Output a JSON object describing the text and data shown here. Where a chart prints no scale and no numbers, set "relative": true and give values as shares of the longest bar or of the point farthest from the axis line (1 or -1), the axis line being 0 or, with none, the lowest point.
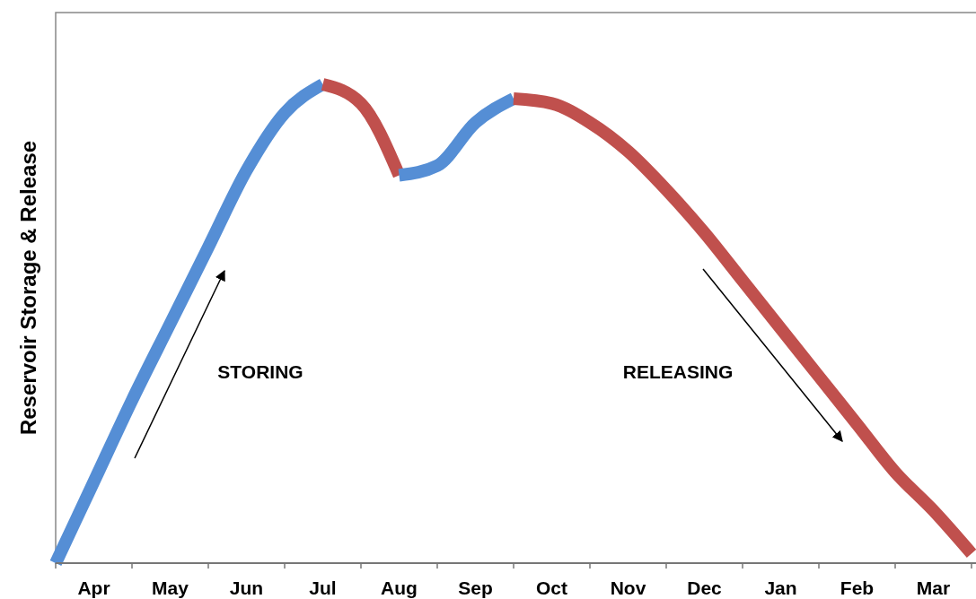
{
  "chart_data": {
    "type": "line",
    "ylabel": "Reservoir Storage & Release",
    "relative": true,
    "categories": [
      null,
      "Apr",
      null,
      "May",
      null,
      "Jun",
      null,
      "Jul",
      null,
      "Aug",
      null,
      "Sep",
      null,
      "Oct",
      null,
      "Nov",
      null,
      "Dec",
      null,
      "Jan",
      null,
      "Feb",
      null,
      "Mar",
      null
    ],
    "grid": false,
    "legend": false,
    "marker": "none",
    "line_style": "solid",
    "series": [
      {
        "color": "#558ed5",
        "values": [
          0,
          0.17,
          0.34,
          0.5,
          0.66,
          0.82,
          0.94,
          1,
          null,
          null,
          null,
          null,
          null,
          null,
          null,
          null,
          null,
          null,
          null,
          null,
          null,
          null,
          null,
          null,
          null
        ]
      },
      {
        "color": "#c0504d",
        "values": [
          null,
          null,
          null,
          null,
          null,
          null,
          null,
          1,
          0.96,
          0.81,
          null,
          null,
          null,
          null,
          null,
          null,
          null,
          null,
          null,
          null,
          null,
          null,
          null,
          null,
          null
        ]
      },
      {
        "color": "#558ed5",
        "values": [
          null,
          null,
          null,
          null,
          null,
          null,
          null,
          null,
          null,
          0.81,
          0.83,
          0.92,
          0.97,
          null,
          null,
          null,
          null,
          null,
          null,
          null,
          null,
          null,
          null,
          null,
          null
        ]
      },
      {
        "color": "#c0504d",
        "values": [
          null,
          null,
          null,
          null,
          null,
          null,
          null,
          null,
          null,
          null,
          null,
          null,
          0.97,
          0.96,
          0.92,
          0.86,
          0.78,
          0.69,
          0.59,
          0.49,
          0.39,
          0.29,
          0.19,
          0.11,
          0.02
        ]
      }
    ],
    "annotations": [
      "STORING",
      "RELEASING"
    ]
  }
}
